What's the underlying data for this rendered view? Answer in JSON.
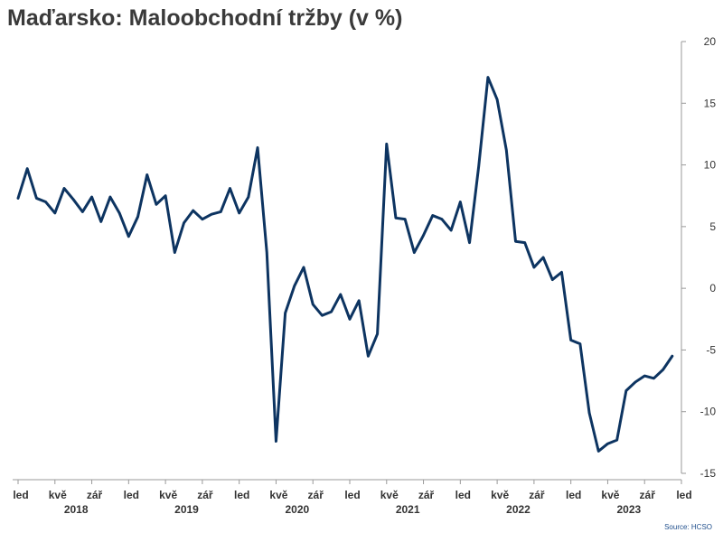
{
  "chart_data": {
    "type": "line",
    "title": "Maďarsko: Maloobchodní tržby (v %)",
    "source": "Source: HCSO",
    "xlabel": "",
    "ylabel": "",
    "ylim": [
      -15,
      20
    ],
    "y_ticks": [
      20,
      15,
      10,
      5,
      0,
      -5,
      -10,
      -15
    ],
    "y_axis_position": "right",
    "grid": false,
    "legend": "none",
    "line_color": "#0d3461",
    "month_tick_labels": [
      "led",
      "kvě",
      "zář",
      "led",
      "kvě",
      "zář",
      "led",
      "kvě",
      "zář",
      "led",
      "kvě",
      "zář",
      "led",
      "kvě",
      "zář",
      "led",
      "kvě",
      "zář",
      "led"
    ],
    "year_labels": [
      "2018",
      "2019",
      "2020",
      "2021",
      "2022",
      "2023"
    ],
    "series": [
      {
        "values": [
          {
            "x": "2018-01",
            "y": 7.3
          },
          {
            "x": "2018-02",
            "y": 9.7
          },
          {
            "x": "2018-03",
            "y": 7.3
          },
          {
            "x": "2018-04",
            "y": 7.0
          },
          {
            "x": "2018-05",
            "y": 6.1
          },
          {
            "x": "2018-06",
            "y": 8.1
          },
          {
            "x": "2018-07",
            "y": 7.2
          },
          {
            "x": "2018-08",
            "y": 6.2
          },
          {
            "x": "2018-09",
            "y": 7.4
          },
          {
            "x": "2018-10",
            "y": 5.4
          },
          {
            "x": "2018-11",
            "y": 7.4
          },
          {
            "x": "2018-12",
            "y": 6.1
          },
          {
            "x": "2019-01",
            "y": 4.2
          },
          {
            "x": "2019-02",
            "y": 5.8
          },
          {
            "x": "2019-03",
            "y": 9.2
          },
          {
            "x": "2019-04",
            "y": 6.8
          },
          {
            "x": "2019-05",
            "y": 7.5
          },
          {
            "x": "2019-06",
            "y": 2.9
          },
          {
            "x": "2019-07",
            "y": 5.3
          },
          {
            "x": "2019-08",
            "y": 6.3
          },
          {
            "x": "2019-09",
            "y": 5.6
          },
          {
            "x": "2019-10",
            "y": 6.0
          },
          {
            "x": "2019-11",
            "y": 6.2
          },
          {
            "x": "2019-12",
            "y": 8.1
          },
          {
            "x": "2020-01",
            "y": 6.1
          },
          {
            "x": "2020-02",
            "y": 7.4
          },
          {
            "x": "2020-03",
            "y": 11.4
          },
          {
            "x": "2020-04",
            "y": 2.9
          },
          {
            "x": "2020-05",
            "y": -12.4
          },
          {
            "x": "2020-06",
            "y": -2.0
          },
          {
            "x": "2020-07",
            "y": 0.2
          },
          {
            "x": "2020-08",
            "y": 1.7
          },
          {
            "x": "2020-09",
            "y": -1.3
          },
          {
            "x": "2020-10",
            "y": -2.2
          },
          {
            "x": "2020-11",
            "y": -1.9
          },
          {
            "x": "2020-12",
            "y": -0.5
          },
          {
            "x": "2021-01",
            "y": -2.5
          },
          {
            "x": "2021-02",
            "y": -1.0
          },
          {
            "x": "2021-03",
            "y": -5.5
          },
          {
            "x": "2021-04",
            "y": -3.7
          },
          {
            "x": "2021-05",
            "y": 11.7
          },
          {
            "x": "2021-06",
            "y": 5.7
          },
          {
            "x": "2021-07",
            "y": 5.6
          },
          {
            "x": "2021-08",
            "y": 2.9
          },
          {
            "x": "2021-09",
            "y": 4.3
          },
          {
            "x": "2021-10",
            "y": 5.9
          },
          {
            "x": "2021-11",
            "y": 5.6
          },
          {
            "x": "2021-12",
            "y": 4.7
          },
          {
            "x": "2022-01",
            "y": 7.0
          },
          {
            "x": "2022-02",
            "y": 3.7
          },
          {
            "x": "2022-03",
            "y": 9.9
          },
          {
            "x": "2022-04",
            "y": 17.1
          },
          {
            "x": "2022-05",
            "y": 15.3
          },
          {
            "x": "2022-06",
            "y": 11.2
          },
          {
            "x": "2022-07",
            "y": 3.8
          },
          {
            "x": "2022-08",
            "y": 3.7
          },
          {
            "x": "2022-09",
            "y": 1.7
          },
          {
            "x": "2022-10",
            "y": 2.5
          },
          {
            "x": "2022-11",
            "y": 0.7
          },
          {
            "x": "2022-12",
            "y": 1.3
          },
          {
            "x": "2023-01",
            "y": -4.2
          },
          {
            "x": "2023-02",
            "y": -4.5
          },
          {
            "x": "2023-03",
            "y": -10.1
          },
          {
            "x": "2023-04",
            "y": -13.2
          },
          {
            "x": "2023-05",
            "y": -12.6
          },
          {
            "x": "2023-06",
            "y": -12.3
          },
          {
            "x": "2023-07",
            "y": -8.3
          },
          {
            "x": "2023-08",
            "y": -7.6
          },
          {
            "x": "2023-09",
            "y": -7.1
          },
          {
            "x": "2023-10",
            "y": -7.3
          },
          {
            "x": "2023-11",
            "y": -6.6
          },
          {
            "x": "2023-12",
            "y": -5.5
          }
        ]
      }
    ]
  }
}
